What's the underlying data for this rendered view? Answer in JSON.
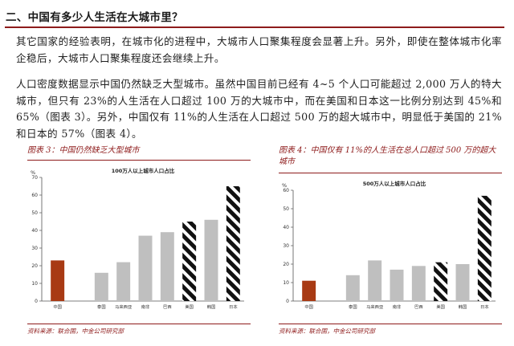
{
  "heading": "二、中国有多少人生活在大城市里？",
  "paragraphs": {
    "p1": "其它国家的经验表明，在城市化的进程中，大城市人口聚集程度会显著上升。另外，即使在整体城市化率企稳后，大城市人口聚集程度还会继续上升。",
    "p2": "人口密度数据显示中国仍然缺乏大型城市。虽然中国目前已经有 4~5 个人口可能超过 2,000 万人的特大城市，但只有 23%的人生活在人口超过 100 万的大城市中，而在美国和日本这一比例分别达到 45%和 65%（图表 3）。另外，中国仅有 11%的人生活在人口超过 500 万的超大城市中，明显低于美国的 21%和日本的 57%（图表 4）。"
  },
  "colors": {
    "accent": "#8e1b1b",
    "china_bar": "#a83a14",
    "other_bar": "#bfbfbf",
    "striped_bar": "#111111"
  },
  "figures": [
    {
      "caption": "图表 3：中国仍然缺乏大型城市",
      "source": "资料来源：联合国，中金公司研究部"
    },
    {
      "caption": "图表 4：中国仅有 11%的人生活在总人口超过 500 万的超大城市",
      "source": "资料来源：联合国，中金公司研究部"
    }
  ],
  "chart_data": [
    {
      "type": "bar",
      "title": "100万人以上城市人口占比",
      "ylabel": "%",
      "ylim": [
        0,
        70
      ],
      "yticks": [
        0,
        10,
        20,
        30,
        40,
        50,
        60,
        70
      ],
      "categories": [
        "中国",
        "",
        "泰国",
        "马来西亚",
        "南非",
        "巴西",
        "美国",
        "韩国",
        "日本"
      ],
      "values": [
        23,
        null,
        16,
        22,
        37,
        39,
        45,
        46,
        65
      ],
      "styles": [
        "china",
        "gap",
        "plain",
        "plain",
        "plain",
        "plain",
        "striped",
        "plain",
        "striped"
      ],
      "grid": false
    },
    {
      "type": "bar",
      "title": "500万人以上城市人口占比",
      "ylabel": "%",
      "ylim": [
        0,
        60
      ],
      "yticks": [
        0,
        10,
        20,
        30,
        40,
        50,
        60
      ],
      "categories": [
        "中国",
        "",
        "泰国",
        "马来西亚",
        "南非",
        "巴西",
        "美国",
        "韩国",
        "日本"
      ],
      "values": [
        11,
        null,
        14,
        22,
        17,
        19,
        21,
        20,
        57
      ],
      "styles": [
        "china",
        "gap",
        "plain",
        "plain",
        "plain",
        "plain",
        "striped",
        "plain",
        "striped"
      ],
      "grid": false
    }
  ]
}
